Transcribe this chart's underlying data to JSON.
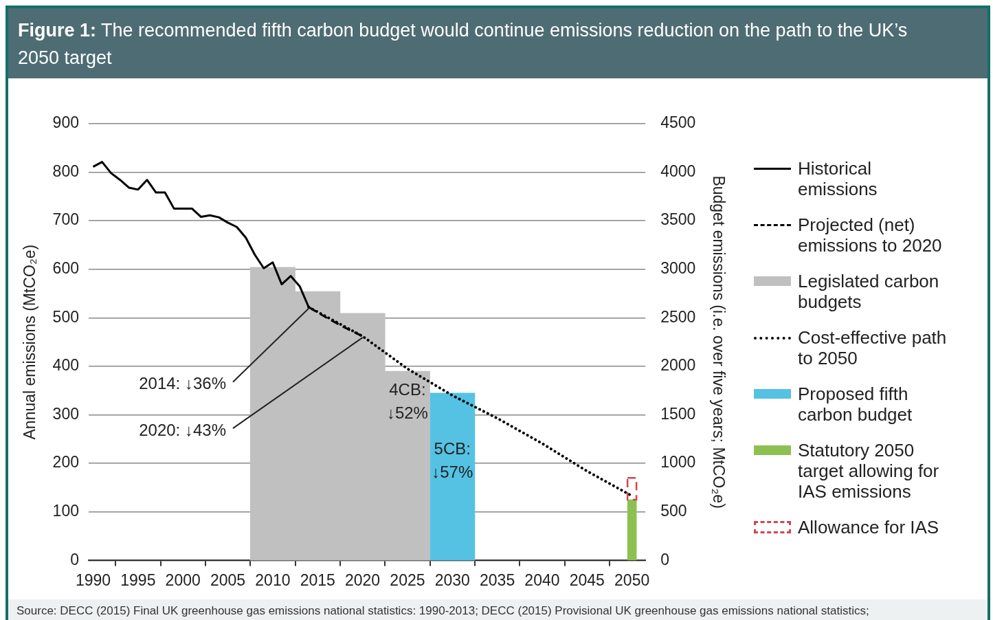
{
  "chart_data": {
    "type": "line",
    "title": "Figure 1: The recommended fifth carbon budget would continue emissions reduction on the path to the UK’s 2050 target",
    "ylabel": "Annual emissions (MtCO₂e)",
    "y2label": "Budget emissions (i.e. over five years; MtCO₂e)",
    "xlim": [
      1989.5,
      2051.5
    ],
    "xticks": [
      1990,
      1995,
      2000,
      2005,
      2010,
      2015,
      2020,
      2025,
      2030,
      2035,
      2040,
      2045,
      2050
    ],
    "ylim": [
      0,
      900
    ],
    "yticks": [
      0,
      100,
      200,
      300,
      400,
      500,
      600,
      700,
      800,
      900
    ],
    "y2lim": [
      0,
      4500
    ],
    "y2ticks": [
      0,
      500,
      1000,
      1500,
      2000,
      2500,
      3000,
      3500,
      4000,
      4500
    ],
    "grid": "y",
    "legend": "right",
    "series": [
      {
        "name": "Historical emissions",
        "line_style": "solid",
        "color": "#000000",
        "x": [
          1990,
          1991,
          1992,
          1993,
          1994,
          1995,
          1996,
          1997,
          1998,
          1999,
          2000,
          2001,
          2002,
          2003,
          2004,
          2005,
          2006,
          2007,
          2008,
          2009,
          2010,
          2011,
          2012,
          2013,
          2014
        ],
        "values": [
          811,
          821,
          798,
          784,
          768,
          764,
          784,
          758,
          758,
          725,
          725,
          725,
          708,
          711,
          707,
          696,
          687,
          665,
          630,
          602,
          614,
          569,
          586,
          565,
          522
        ]
      },
      {
        "name": "Projected (net) emissions to 2020",
        "line_style": "dashed",
        "color": "#000000",
        "x": [
          2014,
          2016,
          2018,
          2020
        ],
        "values": [
          522,
          500,
          480,
          462
        ]
      },
      {
        "name": "Legislated carbon budgets",
        "type": "bar",
        "axis": "y2",
        "color": "#c0c0c0",
        "x": [
          2010,
          2015,
          2020,
          2025
        ],
        "values": [
          3020,
          2770,
          2545,
          1950
        ]
      },
      {
        "name": "Cost-effective path to 2050",
        "line_style": "dotted",
        "color": "#000000",
        "x": [
          2014,
          2020,
          2025,
          2030,
          2035,
          2040,
          2045,
          2050
        ],
        "values": [
          522,
          462,
          395,
          340,
          293,
          241,
          184,
          133
        ]
      },
      {
        "name": "Proposed fifth carbon budget",
        "type": "bar",
        "axis": "y2",
        "color": "#55c2e4",
        "x": [
          2030
        ],
        "values": [
          1725
        ]
      },
      {
        "name": "Statutory 2050 target allowing for IAS emissions",
        "type": "bar",
        "color": "#8cc152",
        "x": [
          2050
        ],
        "values": [
          125
        ]
      },
      {
        "name": "Allowance for IAS",
        "type": "bar",
        "line_style": "dashed",
        "color": "#d2444f",
        "x": [
          2050
        ],
        "base": [
          125
        ],
        "values": [
          45
        ]
      }
    ],
    "annotations": [
      {
        "text": "2014: ↓36%",
        "x": 2014,
        "y": 522
      },
      {
        "text": "2020: ↓43%",
        "x": 2020,
        "y": 462
      },
      "4CB: ↓52%",
      "5CB: ↓57%",
      "Source: DECC (2015) Final UK greenhouse gas emissions national statistics: 1990-2013; DECC (2015) Provisional UK greenhouse gas emissions national statistics;"
    ]
  }
}
